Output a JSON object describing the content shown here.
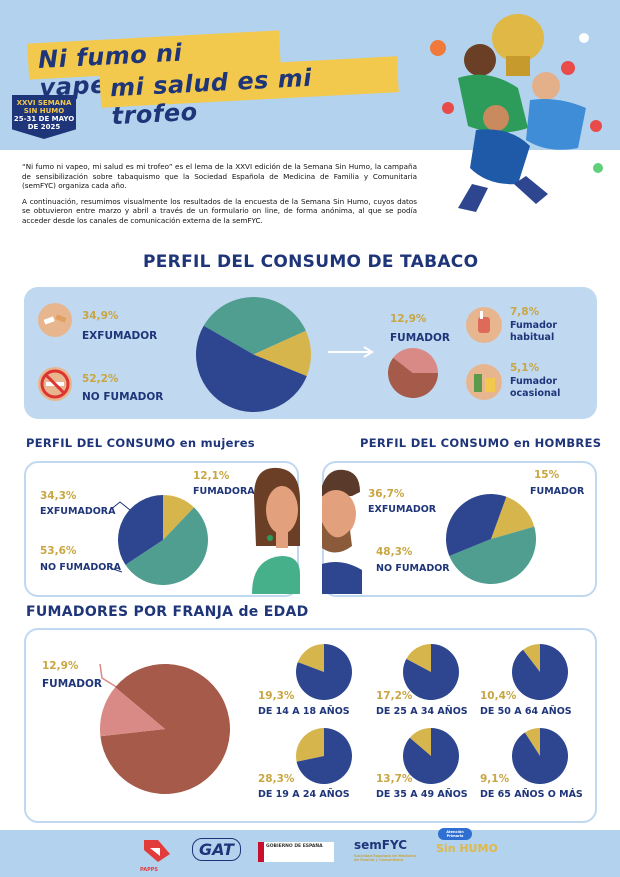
{
  "header": {
    "title_line1": "Ni fumo ni vapeo",
    "title_line2": "mi salud es mi trofeo",
    "badge_line1": "XXVI SEMANA",
    "badge_line2": "SIN HUMO",
    "badge_line3": "25-31 DE MAYO",
    "badge_line4": "DE 2025"
  },
  "intro": {
    "p1": "“Ni fumo ni vapeo, mi salud es mi trofeo” es el lema de la XXVI edición de la Semana Sin Humo, la campaña de sensibilización sobre tabaquismo que la Sociedad Española de Medicina de Familia y Comunitaria (semFYC) organiza cada año.",
    "p2": "A continuación, resumimos visualmente los resultados de la encuesta de la Semana Sin Humo, cuyos datos se obtuvieron entre marzo y abril a través de un formulario on line, de forma anónima, al que se podía acceder desde los canales de comunicación externa de la semFYC."
  },
  "section_titles": {
    "tabaco": "PERFIL DEL CONSUMO DE TABACO",
    "mujeres": "PERFIL DEL CONSUMO en mujeres",
    "hombres": "PERFIL DEL CONSUMO en HOMBRES",
    "edad": "FUMADORES POR FRANJA de EDAD"
  },
  "colors": {
    "navy": "#2d468f",
    "teal": "#4f9e90",
    "gold": "#d6b64c",
    "brick": "#a65a4a",
    "pink": "#d98a86"
  },
  "chart_data": [
    {
      "type": "pie",
      "id": "general",
      "labels": [
        "EXFUMADOR",
        "NO FUMADOR",
        "FUMADOR"
      ],
      "pct_labels": [
        "34,9%",
        "52,2%",
        "12,9%"
      ],
      "values": [
        34.9,
        52.2,
        12.9
      ]
    },
    {
      "type": "pie",
      "id": "fumador_tipo",
      "labels": [
        "Fumador habitual",
        "Fumador ocasional"
      ],
      "label_lines": [
        [
          "Fumador",
          "habitual"
        ],
        [
          "Fumador",
          "ocasional"
        ]
      ],
      "pct_labels": [
        "7,8%",
        "5,1%"
      ],
      "values": [
        7.8,
        5.1
      ]
    },
    {
      "type": "pie",
      "id": "mujeres",
      "labels": [
        "EXFUMADORA",
        "NO FUMADORA",
        "FUMADORA"
      ],
      "pct_labels": [
        "34,3%",
        "53,6%",
        "12,1%"
      ],
      "values": [
        34.3,
        53.6,
        12.1
      ]
    },
    {
      "type": "pie",
      "id": "hombres",
      "labels": [
        "EXFUMADOR",
        "NO FUMADOR",
        "FUMADOR"
      ],
      "pct_labels": [
        "36,7%",
        "48,3%",
        "15%"
      ],
      "values": [
        36.7,
        48.3,
        15
      ]
    },
    {
      "type": "pie",
      "id": "edad_total",
      "labels": [
        "FUMADOR"
      ],
      "pct_labels": [
        "12,9%"
      ],
      "values": [
        12.9
      ]
    },
    {
      "type": "pie",
      "id": "edad_franjas",
      "categories": [
        "DE 14 A 18 AÑOS",
        "DE 19 A 24 AÑOS",
        "DE 25 A 34 AÑOS",
        "DE 35 A 49 AÑOS",
        "DE 50 A 64 AÑOS",
        "DE 65 AÑOS O MÁS"
      ],
      "pct_labels": [
        "19,3%",
        "28,3%",
        "17,2%",
        "13,7%",
        "10,4%",
        "9,1%"
      ],
      "values": [
        19.3,
        28.3,
        17.2,
        13.7,
        10.4,
        9.1
      ]
    }
  ],
  "footer": {
    "logos": [
      "PAPPS",
      "GAT",
      "GOBIERNO DE ESPAÑA",
      "semFYC",
      "Sin HUMO"
    ],
    "sinhumo_tag": "Atención Primaria",
    "semfyc_sub": "Sociedad Española de Medicina de Familia y Comunitaria"
  }
}
